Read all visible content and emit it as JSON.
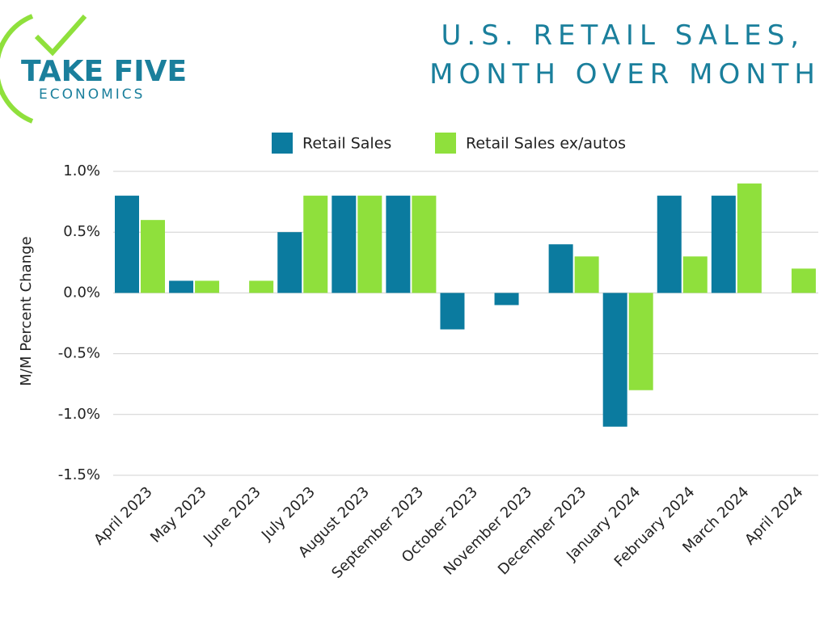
{
  "logo": {
    "name": "TAKE FIVE",
    "tagline": "ECONOMICS"
  },
  "chart_data": {
    "type": "bar",
    "title": [
      "U.S. RETAIL SALES,",
      "MONTH OVER MONTH"
    ],
    "y_label": "M/M Percent Change",
    "categories": [
      "April 2023",
      "May 2023",
      "June 2023",
      "July 2023",
      "August 2023",
      "September 2023",
      "October 2023",
      "November 2023",
      "December 2023",
      "January 2024",
      "February 2024",
      "March 2024",
      "April 2024"
    ],
    "series": [
      {
        "name": "Retail Sales",
        "color": "#0b7b9f",
        "values": [
          0.8,
          0.1,
          0.0,
          0.5,
          0.8,
          0.8,
          -0.3,
          -0.1,
          0.4,
          -1.1,
          0.8,
          0.8,
          0.0
        ]
      },
      {
        "name": "Retail Sales ex/autos",
        "color": "#8fe03c",
        "values": [
          0.6,
          0.1,
          0.1,
          0.8,
          0.8,
          0.8,
          0.0,
          0.0,
          0.3,
          -0.8,
          0.3,
          0.9,
          0.2
        ]
      }
    ],
    "ylim": [
      -1.5,
      1.0
    ],
    "yticks": [
      {
        "value": -1.5,
        "label": "-1.5%"
      },
      {
        "value": -1.0,
        "label": "-1.0%"
      },
      {
        "value": -0.5,
        "label": "-0.5%"
      },
      {
        "value": 0.0,
        "label": "0.0%"
      },
      {
        "value": 0.5,
        "label": "0.5%"
      },
      {
        "value": 1.0,
        "label": "1.0%"
      }
    ],
    "grid": true,
    "legend": "top"
  }
}
